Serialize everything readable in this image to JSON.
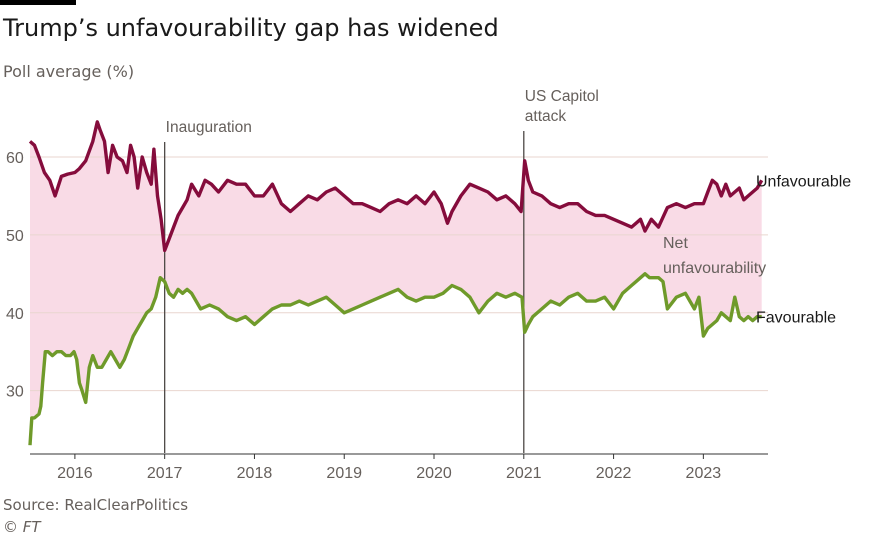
{
  "title": "Trump’s unfavourability gap has widened",
  "subtitle": "Poll average (%)",
  "source": "Source: RealClearPolitics",
  "copyright": "© FT",
  "colors": {
    "unfavourable": "#850c3c",
    "favourable": "#6f9a2a",
    "gap_fill": "#f9dbe6",
    "grid": "#e9d6cf",
    "event_line": "#4d4845",
    "tick_text": "#66605c"
  },
  "chart_data": {
    "type": "line",
    "title": "Trump’s unfavourability gap has widened",
    "ylabel": "Poll average (%)",
    "ylim": [
      22,
      65
    ],
    "xlim": [
      2015.5,
      2023.72
    ],
    "yticks": [
      30,
      40,
      50,
      60
    ],
    "xticks": [
      {
        "value": 2016,
        "label": "2016"
      },
      {
        "value": 2017,
        "label": "2017"
      },
      {
        "value": 2018,
        "label": "2018"
      },
      {
        "value": 2019,
        "label": "2019"
      },
      {
        "value": 2020,
        "label": "2020"
      },
      {
        "value": 2021,
        "label": "2021"
      },
      {
        "value": 2022,
        "label": "2022"
      },
      {
        "value": 2023,
        "label": "2023"
      }
    ],
    "grid": true,
    "shaded_region_label": "Net unfavourability",
    "annotations": [
      {
        "x": 2017.0,
        "label": [
          "Inauguration"
        ]
      },
      {
        "x": 2021.0,
        "label": [
          "US Capitol",
          "attack"
        ]
      }
    ],
    "series": [
      {
        "name": "Unfavourable",
        "x": [
          2015.5,
          2015.55,
          2015.6,
          2015.66,
          2015.72,
          2015.78,
          2015.85,
          2015.92,
          2016.0,
          2016.05,
          2016.12,
          2016.2,
          2016.25,
          2016.28,
          2016.33,
          2016.37,
          2016.42,
          2016.47,
          2016.53,
          2016.58,
          2016.62,
          2016.66,
          2016.7,
          2016.75,
          2016.8,
          2016.85,
          2016.88,
          2016.92,
          2016.96,
          2017.0,
          2017.05,
          2017.1,
          2017.15,
          2017.2,
          2017.25,
          2017.3,
          2017.38,
          2017.45,
          2017.52,
          2017.6,
          2017.7,
          2017.8,
          2017.9,
          2018.0,
          2018.1,
          2018.2,
          2018.3,
          2018.4,
          2018.5,
          2018.6,
          2018.7,
          2018.8,
          2018.9,
          2019.0,
          2019.1,
          2019.2,
          2019.3,
          2019.4,
          2019.5,
          2019.6,
          2019.7,
          2019.8,
          2019.9,
          2020.0,
          2020.08,
          2020.15,
          2020.2,
          2020.3,
          2020.4,
          2020.5,
          2020.6,
          2020.7,
          2020.8,
          2020.9,
          2020.97,
          2021.01,
          2021.05,
          2021.1,
          2021.2,
          2021.3,
          2021.4,
          2021.5,
          2021.6,
          2021.7,
          2021.8,
          2021.9,
          2022.0,
          2022.1,
          2022.2,
          2022.3,
          2022.35,
          2022.42,
          2022.5,
          2022.6,
          2022.7,
          2022.8,
          2022.9,
          2023.0,
          2023.05,
          2023.1,
          2023.15,
          2023.2,
          2023.25,
          2023.3,
          2023.35,
          2023.4,
          2023.45,
          2023.5,
          2023.55,
          2023.6,
          2023.65
        ],
        "values": [
          62,
          61.5,
          60,
          58,
          57,
          55,
          57.5,
          57.8,
          58,
          58.5,
          59.5,
          62,
          64.5,
          63.5,
          62,
          58,
          61.5,
          60,
          59.5,
          58,
          61.5,
          60,
          56,
          60,
          58,
          56.5,
          61,
          55,
          52,
          48,
          49.5,
          51,
          52.5,
          53.5,
          54.5,
          56.5,
          55,
          57,
          56.5,
          55.5,
          57,
          56.5,
          56.5,
          55,
          55,
          56.5,
          54,
          53,
          54,
          55,
          54.5,
          55.5,
          56,
          55,
          54,
          54,
          53.5,
          53,
          54,
          54.5,
          54,
          55,
          54,
          55.5,
          54,
          51.5,
          53,
          55,
          56.5,
          56,
          55.5,
          54.5,
          55,
          54,
          53,
          59.5,
          57,
          55.5,
          55,
          54,
          53.5,
          54,
          54,
          53,
          52.5,
          52.5,
          52,
          51.5,
          51,
          52,
          50.5,
          52,
          51,
          53.5,
          54,
          53.5,
          54,
          54,
          55.5,
          57,
          56.5,
          55,
          56.5,
          55,
          55.5,
          56,
          54.5,
          55,
          55.5,
          56,
          57
        ]
      },
      {
        "name": "Favourable",
        "x": [
          2015.5,
          2015.52,
          2015.55,
          2015.6,
          2015.62,
          2015.64,
          2015.67,
          2015.7,
          2015.75,
          2015.8,
          2015.85,
          2015.9,
          2015.95,
          2015.99,
          2016.02,
          2016.05,
          2016.08,
          2016.12,
          2016.16,
          2016.2,
          2016.25,
          2016.3,
          2016.35,
          2016.4,
          2016.45,
          2016.5,
          2016.55,
          2016.6,
          2016.65,
          2016.7,
          2016.75,
          2016.8,
          2016.85,
          2016.9,
          2016.95,
          2017.0,
          2017.05,
          2017.1,
          2017.15,
          2017.2,
          2017.25,
          2017.3,
          2017.4,
          2017.5,
          2017.6,
          2017.7,
          2017.8,
          2017.9,
          2018.0,
          2018.1,
          2018.2,
          2018.3,
          2018.4,
          2018.5,
          2018.6,
          2018.7,
          2018.8,
          2018.9,
          2019.0,
          2019.1,
          2019.2,
          2019.3,
          2019.4,
          2019.5,
          2019.6,
          2019.7,
          2019.8,
          2019.9,
          2020.0,
          2020.1,
          2020.2,
          2020.3,
          2020.4,
          2020.5,
          2020.6,
          2020.7,
          2020.8,
          2020.9,
          2020.98,
          2021.01,
          2021.05,
          2021.1,
          2021.2,
          2021.3,
          2021.4,
          2021.5,
          2021.6,
          2021.7,
          2021.8,
          2021.9,
          2022.0,
          2022.1,
          2022.2,
          2022.3,
          2022.35,
          2022.4,
          2022.5,
          2022.55,
          2022.6,
          2022.7,
          2022.8,
          2022.9,
          2022.95,
          2023.0,
          2023.05,
          2023.1,
          2023.15,
          2023.2,
          2023.25,
          2023.3,
          2023.35,
          2023.4,
          2023.45,
          2023.5,
          2023.55,
          2023.6,
          2023.65
        ],
        "values": [
          23,
          26.5,
          26.5,
          27,
          28,
          31,
          35,
          35,
          34.5,
          35,
          35,
          34.5,
          34.5,
          35,
          34,
          31,
          30,
          28.5,
          33,
          34.5,
          33,
          33,
          34,
          35,
          34,
          33,
          34,
          35.5,
          37,
          38,
          39,
          40,
          40.5,
          42,
          44.5,
          44,
          42.5,
          42,
          43,
          42.5,
          43,
          42.5,
          40.5,
          41,
          40.5,
          39.5,
          39,
          39.5,
          38.5,
          39.5,
          40.5,
          41,
          41,
          41.5,
          41,
          41.5,
          42,
          41,
          40,
          40.5,
          41,
          41.5,
          42,
          42.5,
          43,
          42,
          41.5,
          42,
          42,
          42.5,
          43.5,
          43,
          42,
          40,
          41.5,
          42.5,
          42,
          42.5,
          42,
          37.5,
          38.5,
          39.5,
          40.5,
          41.5,
          41,
          42,
          42.5,
          41.5,
          41.5,
          42,
          40.5,
          42.5,
          43.5,
          44.5,
          45,
          44.5,
          44.5,
          44,
          40.5,
          42,
          42.5,
          40.5,
          42,
          37,
          38,
          38.5,
          39,
          40,
          39.5,
          39,
          42,
          39.5,
          39,
          39.5,
          39,
          39.5,
          39.5
        ]
      }
    ]
  }
}
